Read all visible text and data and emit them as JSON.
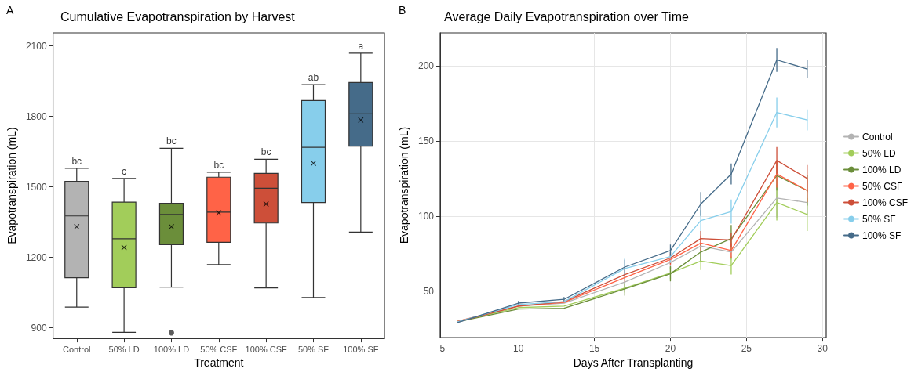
{
  "chart_data": [
    {
      "type": "box",
      "title": "Cumulative Evapotranspiration by Harvest",
      "xlabel": "Treatment",
      "ylabel": "Evapotranspiration (mL)",
      "categories": [
        "Control",
        "50% LD",
        "100% LD",
        "50% CSF",
        "100% CSF",
        "50% SF",
        "100% SF"
      ],
      "colors": [
        "#b3b3b3",
        "#a2cd5a",
        "#6b8e3a",
        "#ff6347",
        "#cd4f39",
        "#87ceeb",
        "#456b89"
      ],
      "boxes": [
        {
          "low": 988,
          "q1": 1113,
          "median": 1376,
          "q3": 1523,
          "high": 1579,
          "mean": 1330
        },
        {
          "low": 881,
          "q1": 1071,
          "median": 1279,
          "q3": 1435,
          "high": 1536,
          "mean": 1242
        },
        {
          "low": 1073,
          "q1": 1254,
          "median": 1382,
          "q3": 1430,
          "high": 1664,
          "mean": 1330,
          "outliers": [
            879
          ]
        },
        {
          "low": 1169,
          "q1": 1264,
          "median": 1392,
          "q3": 1541,
          "high": 1562,
          "mean": 1389
        },
        {
          "low": 1070,
          "q1": 1346,
          "median": 1494,
          "q3": 1557,
          "high": 1617,
          "mean": 1427
        },
        {
          "low": 1029,
          "q1": 1433,
          "median": 1668,
          "q3": 1867,
          "high": 1935,
          "mean": 1600
        },
        {
          "low": 1307,
          "q1": 1673,
          "median": 1811,
          "q3": 1944,
          "high": 2069,
          "mean": 1784
        }
      ],
      "ylim": [
        855,
        2155
      ],
      "yticks": [
        900,
        1200,
        1500,
        1800,
        2100
      ],
      "grid": false,
      "legend": false,
      "annotations": [
        "A",
        {
          "text": "bc",
          "x": "Control",
          "y": 1579
        },
        {
          "text": "c",
          "x": "50% LD",
          "y": 1536
        },
        {
          "text": "bc",
          "x": "100% LD",
          "y": 1664
        },
        {
          "text": "bc",
          "x": "50% CSF",
          "y": 1562
        },
        {
          "text": "bc",
          "x": "100% CSF",
          "y": 1617
        },
        {
          "text": "ab",
          "x": "50% SF",
          "y": 1935
        },
        {
          "text": "a",
          "x": "100% SF",
          "y": 2069
        }
      ]
    },
    {
      "type": "line",
      "title": "Average Daily Evapotranspiration over Time",
      "xlabel": "Days After Transplanting",
      "ylabel": "Evapotranspiration (mL)",
      "x": [
        6,
        10,
        13,
        17,
        20,
        22,
        24,
        27,
        29
      ],
      "series": [
        {
          "name": "Control",
          "color": "#b3b3b3",
          "values": [
            30,
            40,
            42,
            56,
            69,
            80,
            76,
            112,
            109
          ],
          "errors": [
            null,
            null,
            null,
            4,
            4,
            10,
            5,
            13,
            8
          ]
        },
        {
          "name": "50% LD",
          "color": "#a2cd5a",
          "values": [
            30,
            39,
            40,
            52,
            62,
            70,
            67,
            109,
            101
          ],
          "errors": [
            null,
            null,
            null,
            3,
            4,
            6,
            6,
            12,
            11
          ]
        },
        {
          "name": "100% LD",
          "color": "#6b8e3a",
          "values": [
            29.5,
            38,
            38.5,
            51.5,
            61.5,
            76,
            85,
            127,
            117
          ],
          "errors": [
            null,
            null,
            null,
            4.5,
            5,
            6,
            9,
            10,
            10
          ]
        },
        {
          "name": "50% CSF",
          "color": "#ff6347",
          "values": [
            30,
            40,
            42.5,
            59,
            71,
            82,
            77,
            128,
            117
          ],
          "errors": [
            null,
            null,
            null,
            null,
            4,
            5,
            5,
            9,
            8
          ]
        },
        {
          "name": "100% CSF",
          "color": "#cd4f39",
          "values": [
            29.5,
            40,
            43,
            61,
            72,
            85,
            84,
            137,
            125
          ],
          "errors": [
            null,
            null,
            null,
            5,
            4,
            5,
            5,
            9,
            9
          ]
        },
        {
          "name": "50% SF",
          "color": "#87ceeb",
          "values": [
            29.5,
            41,
            43,
            65,
            73,
            97,
            103,
            169,
            164
          ],
          "errors": [
            null,
            null,
            null,
            7,
            4,
            7,
            8,
            10,
            7
          ]
        },
        {
          "name": "100% SF",
          "color": "#456b89",
          "values": [
            29,
            42,
            44.5,
            66,
            77,
            108,
            128,
            204,
            198
          ],
          "errors": [
            null,
            1.5,
            1.5,
            5,
            4,
            8,
            7,
            8,
            6
          ]
        }
      ],
      "xlim": [
        4.85,
        30.25
      ],
      "xticks": [
        5,
        10,
        15,
        20,
        25,
        30
      ],
      "ylim": [
        19,
        222
      ],
      "yticks": [
        50,
        100,
        150,
        200
      ],
      "grid": true,
      "legend": "right",
      "marker": "none",
      "line_style": "solid",
      "annotations": [
        "B"
      ]
    }
  ]
}
